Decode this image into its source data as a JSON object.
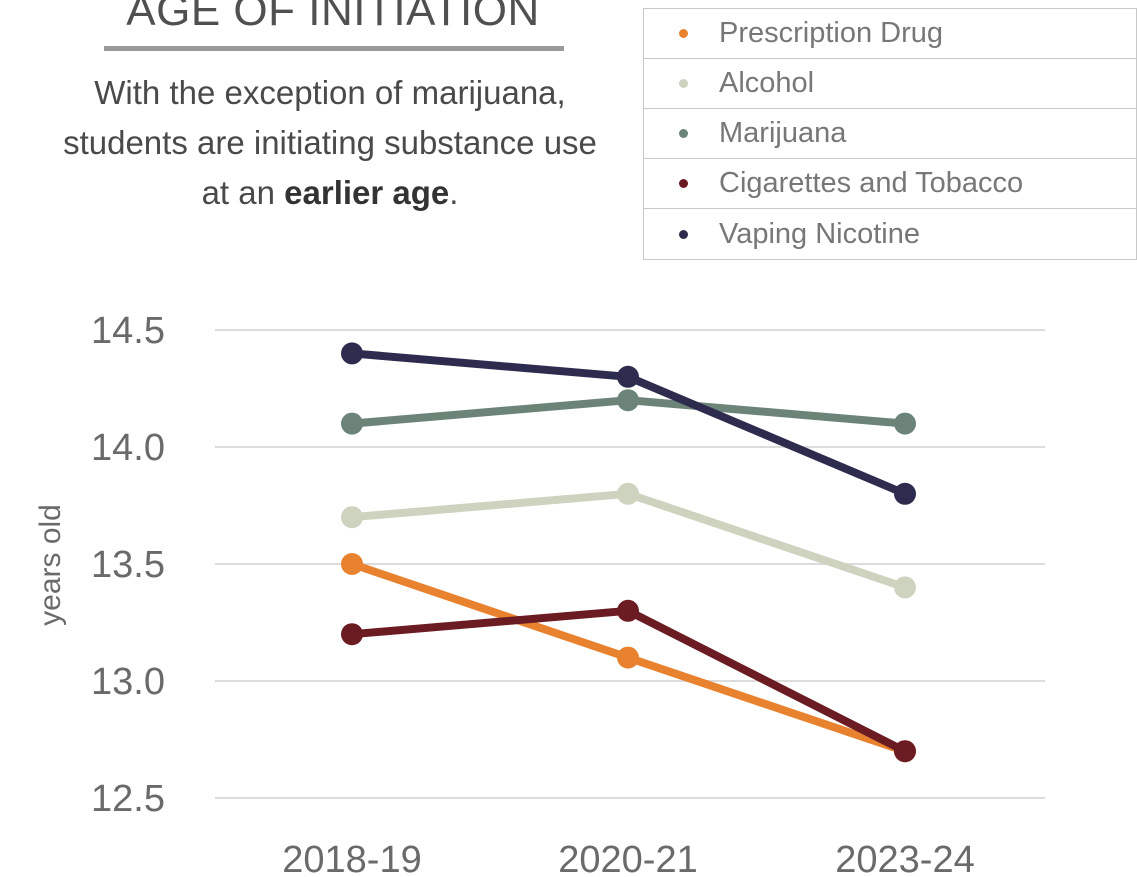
{
  "header": {
    "title": "AGE OF INITIATION",
    "subtitle_part1": "With the exception of marijuana, students are initiating substance use at an",
    "subtitle_bold": "earlier age",
    "subtitle_end": "."
  },
  "legend": {
    "items": [
      {
        "label": "Prescription Drug",
        "color": "#E8822F"
      },
      {
        "label": "Alcohol",
        "color": "#CDD3BE"
      },
      {
        "label": "Marijuana",
        "color": "#6C8478"
      },
      {
        "label": "Cigarettes and Tobacco",
        "color": "#6B1C22"
      },
      {
        "label": "Vaping Nicotine",
        "color": "#2E2C4E"
      }
    ]
  },
  "chart_data": {
    "type": "line",
    "title": "AGE OF INITIATION",
    "ylabel": "years old",
    "xlabel": "",
    "categories": [
      "2018-19",
      "2020-21",
      "2023-24"
    ],
    "ylim": [
      12.5,
      14.5
    ],
    "yticks": [
      "14.5",
      "14.0",
      "13.5",
      "13.0",
      "12.5"
    ],
    "grid": true,
    "legend_position": "top-right",
    "series": [
      {
        "name": "Prescription Drug",
        "color": "#E8822F",
        "values": [
          13.5,
          13.1,
          12.7
        ]
      },
      {
        "name": "Alcohol",
        "color": "#CDD3BE",
        "values": [
          13.7,
          13.8,
          13.4
        ]
      },
      {
        "name": "Marijuana",
        "color": "#6C8478",
        "values": [
          14.1,
          14.2,
          14.1
        ]
      },
      {
        "name": "Cigarettes and Tobacco",
        "color": "#6B1C22",
        "values": [
          13.2,
          13.3,
          12.7
        ]
      },
      {
        "name": "Vaping Nicotine",
        "color": "#2E2C4E",
        "values": [
          14.4,
          14.3,
          13.8
        ]
      }
    ]
  }
}
